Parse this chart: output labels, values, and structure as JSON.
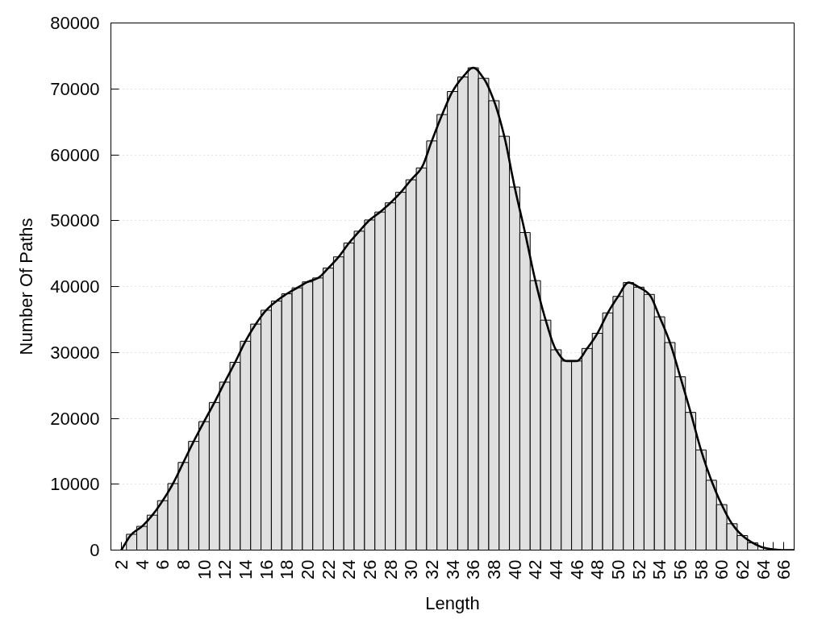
{
  "chart_data": {
    "type": "bar",
    "xlabel": "Length",
    "ylabel": "Number Of Paths",
    "xlim": [
      1,
      67
    ],
    "ylim": [
      0,
      80000
    ],
    "xticks": [
      2,
      {
        "value": 3,
        "label": null
      },
      4,
      {
        "value": 5,
        "label": null
      },
      6,
      {
        "value": 7,
        "label": null
      },
      8,
      {
        "value": 9,
        "label": null
      },
      10,
      {
        "value": 11,
        "label": null
      },
      12,
      {
        "value": 13,
        "label": null
      },
      14,
      {
        "value": 15,
        "label": null
      },
      16,
      {
        "value": 17,
        "label": null
      },
      18,
      {
        "value": 19,
        "label": null
      },
      20,
      {
        "value": 21,
        "label": null
      },
      22,
      {
        "value": 23,
        "label": null
      },
      24,
      {
        "value": 25,
        "label": null
      },
      26,
      {
        "value": 27,
        "label": null
      },
      28,
      {
        "value": 29,
        "label": null
      },
      30,
      {
        "value": 31,
        "label": null
      },
      32,
      {
        "value": 33,
        "label": null
      },
      34,
      {
        "value": 35,
        "label": null
      },
      36,
      {
        "value": 37,
        "label": null
      },
      38,
      {
        "value": 39,
        "label": null
      },
      40,
      {
        "value": 41,
        "label": null
      },
      42,
      {
        "value": 43,
        "label": null
      },
      44,
      {
        "value": 45,
        "label": null
      },
      46,
      {
        "value": 47,
        "label": null
      },
      48,
      {
        "value": 49,
        "label": null
      },
      50,
      {
        "value": 51,
        "label": null
      },
      52,
      {
        "value": 53,
        "label": null
      },
      54,
      {
        "value": 55,
        "label": null
      },
      56,
      {
        "value": 57,
        "label": null
      },
      58,
      {
        "value": 59,
        "label": null
      },
      60,
      {
        "value": 61,
        "label": null
      },
      62,
      {
        "value": 63,
        "label": null
      },
      64,
      {
        "value": 65,
        "label": null
      },
      66
    ],
    "yticks": [
      0,
      10000,
      20000,
      30000,
      40000,
      50000,
      60000,
      70000,
      80000
    ],
    "grid": "y",
    "series": [
      {
        "color": "#e0e0e0",
        "x": [
          3,
          4,
          5,
          6,
          7,
          8,
          9,
          10,
          11,
          12,
          13,
          14,
          15,
          16,
          17,
          18,
          19,
          20,
          21,
          22,
          23,
          24,
          25,
          26,
          27,
          28,
          29,
          30,
          31,
          32,
          33,
          34,
          35,
          36,
          37,
          38,
          39,
          40,
          41,
          42,
          43,
          44,
          45,
          46,
          47,
          48,
          49,
          50,
          51,
          52,
          53,
          54,
          55,
          56,
          57,
          58,
          59,
          60,
          61,
          62,
          63
        ],
        "values": [
          2400,
          3600,
          5300,
          7500,
          10100,
          13300,
          16500,
          19500,
          22400,
          25500,
          28500,
          31700,
          34300,
          36400,
          37800,
          38900,
          39800,
          40700,
          41300,
          42800,
          44500,
          46600,
          48400,
          50100,
          51300,
          52700,
          54300,
          56200,
          58000,
          62100,
          66100,
          69600,
          71800,
          73200,
          71600,
          68200,
          62800,
          55100,
          48200,
          40900,
          34900,
          30400,
          28700,
          28700,
          30600,
          32900,
          36000,
          38500,
          40600,
          39900,
          38800,
          35400,
          31500,
          26300,
          20900,
          15200,
          10600,
          6900,
          4000,
          2200,
          1100
        ]
      },
      {
        "type": "line",
        "color": "#000000",
        "x": [
          2,
          3,
          4,
          5,
          6,
          7,
          8,
          9,
          10,
          11,
          12,
          13,
          14,
          15,
          16,
          17,
          18,
          19,
          20,
          21,
          22,
          23,
          24,
          25,
          26,
          27,
          28,
          29,
          30,
          31,
          32,
          33,
          34,
          35,
          36,
          37,
          38,
          39,
          40,
          41,
          42,
          43,
          44,
          45,
          46,
          47,
          48,
          49,
          50,
          51,
          52,
          53,
          54,
          55,
          56,
          57,
          58,
          59,
          60,
          61,
          62,
          63,
          64,
          65,
          66,
          67
        ],
        "values": [
          0,
          2400,
          3600,
          5300,
          7500,
          10100,
          13300,
          16500,
          19500,
          22400,
          25500,
          28500,
          31700,
          34300,
          36400,
          37800,
          38900,
          39800,
          40700,
          41300,
          42800,
          44500,
          46600,
          48400,
          50100,
          51300,
          52700,
          54300,
          56200,
          58000,
          62100,
          66100,
          69600,
          71800,
          73200,
          71600,
          68200,
          62800,
          55100,
          48200,
          40900,
          34900,
          30400,
          28700,
          28700,
          30600,
          32900,
          36000,
          38500,
          40600,
          39900,
          38800,
          35400,
          31500,
          26300,
          20900,
          15200,
          10600,
          6900,
          4000,
          2200,
          1100,
          400,
          100,
          0,
          0
        ]
      }
    ]
  }
}
